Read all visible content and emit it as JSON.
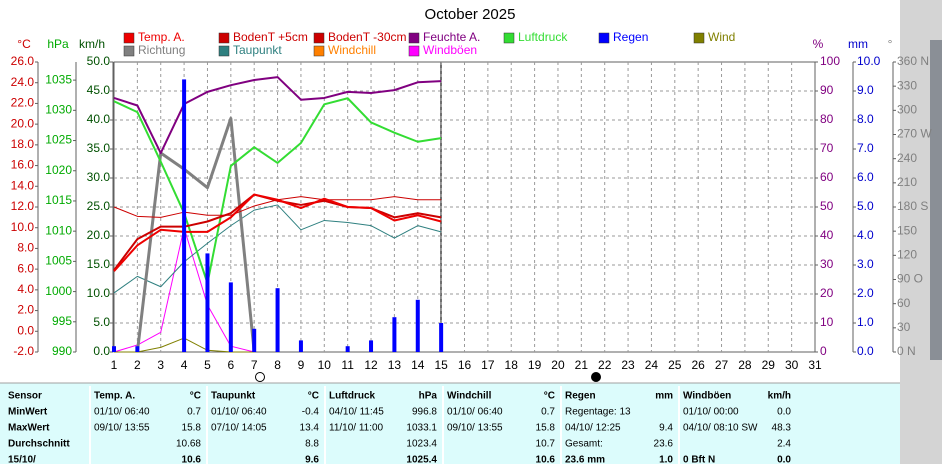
{
  "chart_data": {
    "type": "line",
    "title": "October 2025",
    "categories": [
      "1",
      "2",
      "3",
      "4",
      "5",
      "6",
      "7",
      "8",
      "9",
      "10",
      "11",
      "12",
      "13",
      "14",
      "15",
      "16",
      "17",
      "18",
      "19",
      "20",
      "21",
      "22",
      "23",
      "24",
      "25",
      "26",
      "27",
      "28",
      "29",
      "30",
      "31"
    ],
    "axes": [
      {
        "label": "°C",
        "color": "#cc0000",
        "side": "left",
        "lim": [
          -2,
          26
        ],
        "ticks": [
          {
            "value": -2,
            "label": "-2.0"
          },
          {
            "value": 0,
            "label": "0.0"
          },
          {
            "value": 2,
            "label": "2.0"
          },
          {
            "value": 4,
            "label": "4.0"
          },
          {
            "value": 6,
            "label": "6.0"
          },
          {
            "value": 8,
            "label": "8.0"
          },
          {
            "value": 10,
            "label": "10.0"
          },
          {
            "value": 12,
            "label": "12.0"
          },
          {
            "value": 14,
            "label": "14.0"
          },
          {
            "value": 16,
            "label": "16.0"
          },
          {
            "value": 18,
            "label": "18.0"
          },
          {
            "value": 20,
            "label": "20.0"
          },
          {
            "value": 22,
            "label": "22.0"
          },
          {
            "value": 24,
            "label": "24.0"
          },
          {
            "value": 26,
            "label": "26.0"
          }
        ]
      },
      {
        "label": "hPa",
        "color": "#00aa00",
        "side": "left",
        "lim": [
          990,
          1038
        ],
        "ticks": [
          990,
          995,
          1000,
          1005,
          1010,
          1015,
          1020,
          1025,
          1030,
          1035
        ]
      },
      {
        "label": "km/h",
        "color": "#005000",
        "side": "left",
        "lim": [
          0,
          50
        ],
        "ticks": [
          {
            "value": 0,
            "label": "0.0"
          },
          {
            "value": 5,
            "label": "5.0"
          },
          {
            "value": 10,
            "label": "10.0"
          },
          {
            "value": 15,
            "label": "15.0"
          },
          {
            "value": 20,
            "label": "20.0"
          },
          {
            "value": 25,
            "label": "25.0"
          },
          {
            "value": 30,
            "label": "30.0"
          },
          {
            "value": 35,
            "label": "35.0"
          },
          {
            "value": 40,
            "label": "40.0"
          },
          {
            "value": 45,
            "label": "45.0"
          },
          {
            "value": 50,
            "label": "50.0"
          }
        ]
      },
      {
        "label": "%",
        "color": "#800080",
        "side": "right",
        "lim": [
          0,
          100
        ],
        "grid": true,
        "ticks": [
          0,
          10,
          20,
          30,
          40,
          50,
          60,
          70,
          80,
          90,
          100
        ]
      },
      {
        "label": "mm",
        "color": "#0000cc",
        "side": "right",
        "lim": [
          0,
          10
        ],
        "ticks": [
          {
            "value": 0,
            "label": "0.0"
          },
          {
            "value": 1,
            "label": "1.0"
          },
          {
            "value": 2,
            "label": "2.0"
          },
          {
            "value": 3,
            "label": "3.0"
          },
          {
            "value": 4,
            "label": "4.0"
          },
          {
            "value": 5,
            "label": "5.0"
          },
          {
            "value": 6,
            "label": "6.0"
          },
          {
            "value": 7,
            "label": "7.0"
          },
          {
            "value": 8,
            "label": "8.0"
          },
          {
            "value": 9,
            "label": "9.0"
          },
          {
            "value": 10,
            "label": "10.0"
          }
        ]
      },
      {
        "label": "°",
        "color": "#808080",
        "side": "right",
        "lim": [
          0,
          360
        ],
        "ticks": [
          {
            "value": 0,
            "label": "0 N"
          },
          30,
          60,
          {
            "value": 90,
            "label": "90 O"
          },
          120,
          150,
          {
            "value": 180,
            "label": "180 S"
          },
          210,
          240,
          {
            "value": 270,
            "label": "270 W"
          },
          300,
          330,
          {
            "value": 360,
            "label": "360 N"
          }
        ]
      }
    ],
    "series": [
      {
        "name": "Temp. A.",
        "color": "#ee0000",
        "axis": "°C",
        "linewidth": 2,
        "values": [
          5.8,
          8.3,
          9.8,
          9.6,
          9.6,
          11.0,
          13.2,
          12.7,
          11.9,
          12.8,
          12.0,
          11.9,
          10.7,
          11.2,
          10.6,
          null,
          null,
          null,
          null,
          null,
          null,
          null,
          null,
          null,
          null,
          null,
          null,
          null,
          null,
          null,
          null
        ]
      },
      {
        "name": "BodenT +5cm",
        "color": "#cc0000",
        "axis": "°C",
        "linewidth": 2,
        "values": [
          5.9,
          8.9,
          10.1,
          10.1,
          10.6,
          11.4,
          13.2,
          12.6,
          12.2,
          12.6,
          12.0,
          11.9,
          11.0,
          11.4,
          11.0,
          null,
          null,
          null,
          null,
          null,
          null,
          null,
          null,
          null,
          null,
          null,
          null,
          null,
          null,
          null,
          null
        ]
      },
      {
        "name": "BodenT -30cm",
        "color": "#cc0000",
        "axis": "°C",
        "linewidth": 1,
        "values": [
          12.0,
          11.1,
          11.0,
          11.5,
          11.2,
          11.2,
          12.1,
          12.7,
          13.0,
          12.7,
          12.7,
          12.7,
          13.0,
          12.7,
          12.7,
          null,
          null,
          null,
          null,
          null,
          null,
          null,
          null,
          null,
          null,
          null,
          null,
          null,
          null,
          null,
          null
        ]
      },
      {
        "name": "Feuchte A.",
        "color": "#800080",
        "axis": "%",
        "linewidth": 2,
        "values": [
          87.6,
          85,
          68.6,
          85.5,
          89.7,
          92,
          93.8,
          94.8,
          87,
          87.6,
          89.7,
          89.3,
          90.3,
          93,
          93.4,
          null,
          null,
          null,
          null,
          null,
          null,
          null,
          null,
          null,
          null,
          null,
          null,
          null,
          null,
          null,
          null
        ]
      },
      {
        "name": "Luftdruck",
        "color": "#33dd33",
        "axis": "hPa",
        "linewidth": 2,
        "values": [
          1031.5,
          1029.7,
          1021.5,
          1013,
          1001.4,
          1020.8,
          1023.9,
          1021.3,
          1024.6,
          1031,
          1032,
          1028,
          1026.3,
          1024.8,
          1025.4,
          null,
          null,
          null,
          null,
          null,
          null,
          null,
          null,
          null,
          null,
          null,
          null,
          null,
          null,
          null,
          null
        ]
      },
      {
        "name": "Regen",
        "color": "#0000ff",
        "axis": "mm",
        "type": "bar",
        "values": [
          0.2,
          0.2,
          0,
          9.4,
          3.4,
          2.4,
          0.8,
          2.2,
          0.4,
          0,
          0.2,
          0.4,
          1.2,
          1.8,
          1.0,
          null,
          null,
          null,
          null,
          null,
          null,
          null,
          null,
          null,
          null,
          null,
          null,
          null,
          null,
          null,
          null
        ]
      },
      {
        "name": "Wind",
        "color": "#808000",
        "axis": "km/h",
        "linewidth": 1,
        "values": [
          0,
          0,
          0.8,
          2.4,
          0.3,
          0,
          0,
          null,
          null,
          null,
          null,
          null,
          null,
          null,
          null,
          null,
          null,
          null,
          null,
          null,
          null,
          null,
          null,
          null,
          null,
          null,
          null,
          null,
          null,
          null,
          null
        ]
      },
      {
        "name": "Richtung",
        "color": "#808080",
        "axis": "°",
        "linewidth": 3,
        "values": [
          null,
          0,
          247,
          227,
          204,
          290,
          0,
          null,
          null,
          null,
          null,
          null,
          null,
          null,
          null,
          null,
          null,
          null,
          null,
          null,
          null,
          null,
          null,
          null,
          null,
          null,
          null,
          null,
          null,
          null,
          null
        ]
      },
      {
        "name": "Taupunkt",
        "color": "#2f8080",
        "axis": "°C",
        "linewidth": 1,
        "values": [
          3.7,
          5.3,
          4.3,
          6.7,
          8.5,
          10.2,
          11.7,
          12.2,
          9.8,
          10.7,
          10.5,
          10.2,
          9.0,
          10.2,
          9.6,
          null,
          null,
          null,
          null,
          null,
          null,
          null,
          null,
          null,
          null,
          null,
          null,
          null,
          null,
          null,
          null
        ]
      },
      {
        "name": "Windchill",
        "color": "#ff8000",
        "axis": "°C",
        "linewidth": 1,
        "values": [
          5.8,
          8.3,
          9.8,
          9.6,
          9.6,
          11.0,
          13.2,
          12.7,
          11.9,
          12.8,
          12.0,
          11.9,
          10.7,
          11.2,
          10.6,
          null,
          null,
          null,
          null,
          null,
          null,
          null,
          null,
          null,
          null,
          null,
          null,
          null,
          null,
          null,
          null
        ]
      },
      {
        "name": "Windböen",
        "color": "#ff00ff",
        "axis": "km/h",
        "linewidth": 1,
        "values": [
          0,
          1.2,
          3.4,
          21.4,
          8.1,
          1,
          0,
          null,
          null,
          null,
          null,
          null,
          null,
          null,
          null,
          null,
          null,
          null,
          null,
          null,
          null,
          null,
          null,
          null,
          null,
          null,
          null,
          null,
          null,
          null,
          null
        ]
      }
    ]
  },
  "table": {
    "sensor": "Sensor",
    "header": [
      {
        "name": "Temp. A.",
        "unit": "°C"
      },
      {
        "name": "Taupunkt",
        "unit": "°C"
      },
      {
        "name": "Luftdruck",
        "unit": "hPa"
      },
      {
        "name": "Windchill",
        "unit": "°C"
      },
      {
        "name": "Regen",
        "unit": "mm"
      },
      {
        "name": "Windböen",
        "unit": "km/h"
      }
    ],
    "rows": [
      {
        "label": "MinWert",
        "cells": [
          {
            "when": "01/10/ 06:40",
            "value": "0.7"
          },
          {
            "when": "01/10/ 06:40",
            "value": "-0.4"
          },
          {
            "when": "04/10/ 11:45",
            "value": "996.8"
          },
          {
            "when": "01/10/ 06:40",
            "value": "0.7"
          },
          {
            "when": "Regentage: 13"
          },
          {
            "when": "01/10/ 00:00",
            "value": "0.0"
          }
        ]
      },
      {
        "label": "MaxWert",
        "cells": [
          {
            "when": "09/10/ 13:55",
            "value": "15.8"
          },
          {
            "when": "07/10/ 14:05",
            "value": "13.4"
          },
          {
            "when": "11/10/ 11:00",
            "value": "1033.1"
          },
          {
            "when": "09/10/ 13:55",
            "value": "15.8"
          },
          {
            "when": "04/10/ 12:25",
            "value": "9.4"
          },
          {
            "when": "04/10/ 08:10 SW",
            "value": "48.3"
          }
        ]
      },
      {
        "label": "Durchschnitt",
        "cells": [
          {
            "value": "10.68"
          },
          {
            "value": "8.8"
          },
          {
            "value": "1023.4"
          },
          {
            "value": "10.7"
          },
          {
            "when": "Gesamt:",
            "value": "23.6"
          },
          {
            "value": "2.4"
          }
        ]
      },
      {
        "label": "15/10/",
        "cells": [
          {
            "value": "10.6"
          },
          {
            "value": "9.6"
          },
          {
            "value": "1025.4"
          },
          {
            "value": "10.6"
          },
          {
            "when": "23.6 mm",
            "value": "1.0"
          },
          {
            "when": "0 Bft N",
            "value": "0.0"
          }
        ]
      }
    ]
  }
}
